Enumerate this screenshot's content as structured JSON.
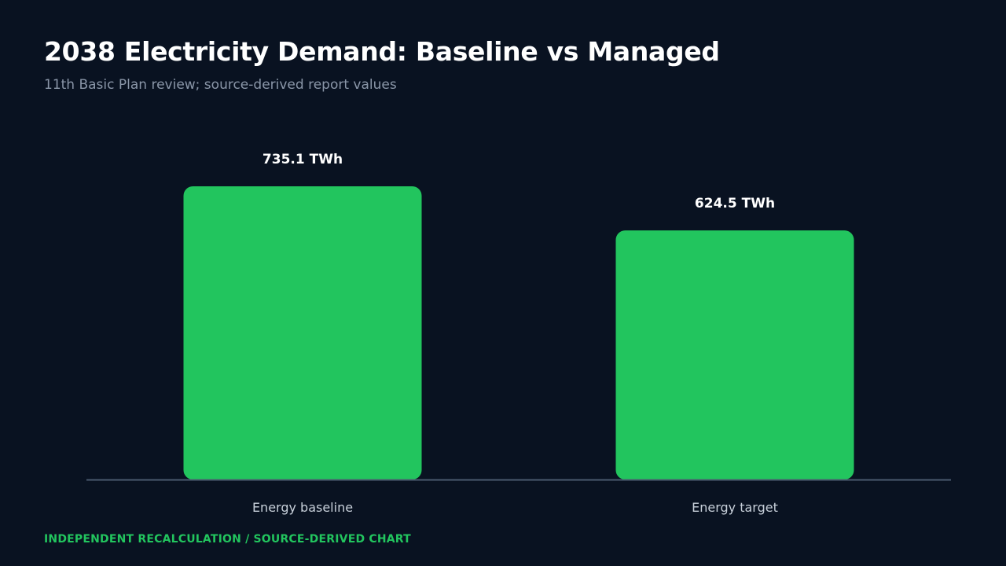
{
  "header": {
    "title": "2038 Electricity Demand: Baseline vs Managed",
    "subtitle": "11th Basic Plan review; source-derived report values"
  },
  "footer": {
    "note": "INDEPENDENT RECALCULATION / SOURCE-DERIVED CHART"
  },
  "colors": {
    "background": "#091221",
    "bar": "#22c55e",
    "axis": "#4a5a6e",
    "value_label": "#ffffff",
    "category_label": "#c8d0da",
    "footer": "#22c55e"
  },
  "chart_data": {
    "type": "bar",
    "categories": [
      "Energy baseline",
      "Energy target"
    ],
    "values": [
      735.1,
      624.5
    ],
    "value_labels": [
      "735.1 TWh",
      "624.5 TWh"
    ],
    "unit": "TWh",
    "grid": false,
    "legend": "none"
  }
}
